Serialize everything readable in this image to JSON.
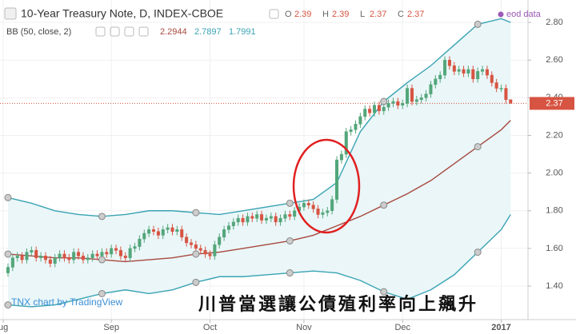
{
  "chart_data": {
    "type": "candlestick",
    "title": "10-Year Treasury Note, D, INDEX-CBOE",
    "ohlc_labels": [
      "O",
      "H",
      "L",
      "C"
    ],
    "ohlc_values": [
      2.39,
      2.39,
      2.37,
      2.37
    ],
    "source_note": "eod data",
    "watermark": "TNX chart by TradingView",
    "caption": "川普當選讓公債殖利率向上飆升",
    "last_price": 2.37,
    "up_color": "#53a67a",
    "down_color": "#d75442",
    "open": [
      1.47,
      1.5,
      1.55,
      1.56,
      1.54,
      1.58,
      1.59,
      1.55,
      1.56,
      1.54,
      1.52,
      1.55,
      1.57,
      1.55,
      1.54,
      1.58,
      1.56,
      1.54,
      1.55,
      1.57,
      1.56,
      1.58,
      1.57,
      1.6,
      1.59,
      1.56,
      1.55,
      1.6,
      1.61,
      1.65,
      1.68,
      1.7,
      1.69,
      1.67,
      1.7,
      1.71,
      1.69,
      1.7,
      1.66,
      1.63,
      1.62,
      1.6,
      1.59,
      1.57,
      1.56,
      1.62,
      1.66,
      1.7,
      1.72,
      1.74,
      1.76,
      1.74,
      1.77,
      1.76,
      1.78,
      1.75,
      1.76,
      1.77,
      1.74,
      1.76,
      1.78,
      1.77,
      1.8,
      1.82,
      1.84,
      1.83,
      1.81,
      1.78,
      1.79,
      1.8,
      1.86,
      2.07,
      2.1,
      2.22,
      2.23,
      2.26,
      2.3,
      2.34,
      2.32,
      2.36,
      2.33,
      2.35,
      2.37,
      2.38,
      2.36,
      2.37,
      2.45,
      2.38,
      2.39,
      2.4,
      2.42,
      2.47,
      2.5,
      2.52,
      2.6,
      2.57,
      2.54,
      2.55,
      2.53,
      2.55,
      2.5,
      2.54,
      2.55,
      2.52,
      2.48,
      2.45,
      2.45,
      2.39
    ],
    "high": [
      1.52,
      1.57,
      1.58,
      1.58,
      1.6,
      1.61,
      1.61,
      1.58,
      1.58,
      1.56,
      1.57,
      1.59,
      1.59,
      1.57,
      1.6,
      1.6,
      1.58,
      1.57,
      1.59,
      1.59,
      1.6,
      1.6,
      1.62,
      1.62,
      1.61,
      1.58,
      1.62,
      1.63,
      1.67,
      1.7,
      1.72,
      1.72,
      1.71,
      1.72,
      1.73,
      1.73,
      1.72,
      1.72,
      1.68,
      1.65,
      1.64,
      1.62,
      1.61,
      1.59,
      1.64,
      1.68,
      1.72,
      1.74,
      1.76,
      1.78,
      1.78,
      1.79,
      1.79,
      1.8,
      1.8,
      1.78,
      1.79,
      1.79,
      1.78,
      1.8,
      1.8,
      1.82,
      1.84,
      1.86,
      1.86,
      1.85,
      1.83,
      1.81,
      1.82,
      1.88,
      2.09,
      2.12,
      2.24,
      2.25,
      2.28,
      2.32,
      2.36,
      2.36,
      2.38,
      2.38,
      2.37,
      2.39,
      2.4,
      2.4,
      2.39,
      2.47,
      2.47,
      2.41,
      2.42,
      2.44,
      2.49,
      2.52,
      2.54,
      2.62,
      2.62,
      2.59,
      2.57,
      2.57,
      2.57,
      2.57,
      2.56,
      2.57,
      2.57,
      2.54,
      2.5,
      2.47,
      2.47,
      2.39
    ],
    "low": [
      1.45,
      1.48,
      1.53,
      1.52,
      1.52,
      1.56,
      1.53,
      1.53,
      1.52,
      1.5,
      1.5,
      1.53,
      1.53,
      1.52,
      1.52,
      1.54,
      1.52,
      1.52,
      1.53,
      1.54,
      1.54,
      1.55,
      1.55,
      1.57,
      1.54,
      1.53,
      1.53,
      1.58,
      1.59,
      1.63,
      1.66,
      1.67,
      1.65,
      1.65,
      1.68,
      1.67,
      1.67,
      1.64,
      1.61,
      1.6,
      1.58,
      1.57,
      1.55,
      1.54,
      1.54,
      1.6,
      1.64,
      1.68,
      1.7,
      1.72,
      1.72,
      1.72,
      1.74,
      1.74,
      1.73,
      1.73,
      1.74,
      1.72,
      1.72,
      1.74,
      1.75,
      1.75,
      1.78,
      1.8,
      1.81,
      1.79,
      1.76,
      1.76,
      1.77,
      1.78,
      1.84,
      2.05,
      2.08,
      2.2,
      2.21,
      2.24,
      2.28,
      2.3,
      2.3,
      2.31,
      2.31,
      2.33,
      2.35,
      2.34,
      2.34,
      2.35,
      2.36,
      2.36,
      2.37,
      2.38,
      2.4,
      2.45,
      2.48,
      2.5,
      2.55,
      2.52,
      2.52,
      2.51,
      2.51,
      2.48,
      2.48,
      2.52,
      2.5,
      2.46,
      2.43,
      2.43,
      2.37,
      2.37
    ],
    "close": [
      1.5,
      1.55,
      1.56,
      1.54,
      1.58,
      1.59,
      1.55,
      1.56,
      1.54,
      1.52,
      1.55,
      1.57,
      1.55,
      1.54,
      1.58,
      1.56,
      1.54,
      1.55,
      1.57,
      1.56,
      1.58,
      1.57,
      1.6,
      1.59,
      1.56,
      1.55,
      1.6,
      1.61,
      1.65,
      1.68,
      1.7,
      1.69,
      1.67,
      1.7,
      1.71,
      1.69,
      1.7,
      1.66,
      1.63,
      1.62,
      1.6,
      1.59,
      1.57,
      1.56,
      1.62,
      1.66,
      1.7,
      1.72,
      1.74,
      1.76,
      1.74,
      1.77,
      1.76,
      1.78,
      1.75,
      1.76,
      1.77,
      1.74,
      1.76,
      1.78,
      1.77,
      1.8,
      1.82,
      1.84,
      1.83,
      1.81,
      1.78,
      1.79,
      1.8,
      1.86,
      2.07,
      2.1,
      2.22,
      2.23,
      2.26,
      2.3,
      2.34,
      2.32,
      2.36,
      2.33,
      2.35,
      2.37,
      2.38,
      2.36,
      2.37,
      2.45,
      2.38,
      2.39,
      2.4,
      2.42,
      2.47,
      2.5,
      2.52,
      2.6,
      2.57,
      2.54,
      2.55,
      2.53,
      2.55,
      2.5,
      2.54,
      2.55,
      2.52,
      2.48,
      2.45,
      2.45,
      2.39,
      2.37
    ],
    "bollinger": {
      "label": "BB (50, close, 2)",
      "last_values": [
        2.2944,
        2.7897,
        1.7991
      ],
      "basis_color": "#a8493f",
      "band_color": "#3aa3b3",
      "fill_color": "#eaf6f8",
      "x": [
        0,
        5,
        10,
        15,
        20,
        25,
        30,
        35,
        40,
        45,
        50,
        55,
        60,
        65,
        70,
        75,
        80,
        85,
        90,
        95,
        100,
        105,
        107
      ],
      "basis": [
        1.57,
        1.56,
        1.55,
        1.55,
        1.54,
        1.53,
        1.54,
        1.55,
        1.57,
        1.58,
        1.6,
        1.62,
        1.64,
        1.67,
        1.72,
        1.77,
        1.83,
        1.89,
        1.96,
        2.05,
        2.14,
        2.23,
        2.28
      ],
      "upper": [
        1.87,
        1.84,
        1.8,
        1.78,
        1.77,
        1.78,
        1.8,
        1.8,
        1.79,
        1.78,
        1.8,
        1.82,
        1.84,
        1.86,
        1.95,
        2.22,
        2.38,
        2.48,
        2.57,
        2.68,
        2.79,
        2.82,
        2.8
      ],
      "lower": [
        1.3,
        1.29,
        1.3,
        1.33,
        1.36,
        1.38,
        1.36,
        1.38,
        1.42,
        1.45,
        1.45,
        1.46,
        1.47,
        1.48,
        1.47,
        1.43,
        1.37,
        1.33,
        1.38,
        1.46,
        1.58,
        1.7,
        1.78
      ]
    },
    "xlim": [
      -1.7,
      110.7
    ],
    "xticks": [
      {
        "value": -1,
        "label": "ug"
      },
      {
        "value": 22,
        "label": "Sep"
      },
      {
        "value": 43,
        "label": "Oct"
      },
      {
        "value": 63,
        "label": "Nov"
      },
      {
        "value": 84,
        "label": "Dec"
      },
      {
        "value": 105,
        "label": "2017"
      }
    ],
    "ylim": [
      1.222,
      2.919
    ],
    "yticks": [
      {
        "value": 1.4,
        "label": "1.40"
      },
      {
        "value": 1.6,
        "label": "1.60"
      },
      {
        "value": 1.8,
        "label": "1.80"
      },
      {
        "value": 2.0,
        "label": "2.00"
      },
      {
        "value": 2.2,
        "label": "2.20"
      },
      {
        "value": 2.4,
        "label": "2.40"
      },
      {
        "value": 2.6,
        "label": "2.60"
      },
      {
        "value": 2.8,
        "label": "2.80"
      }
    ],
    "grid": true
  }
}
